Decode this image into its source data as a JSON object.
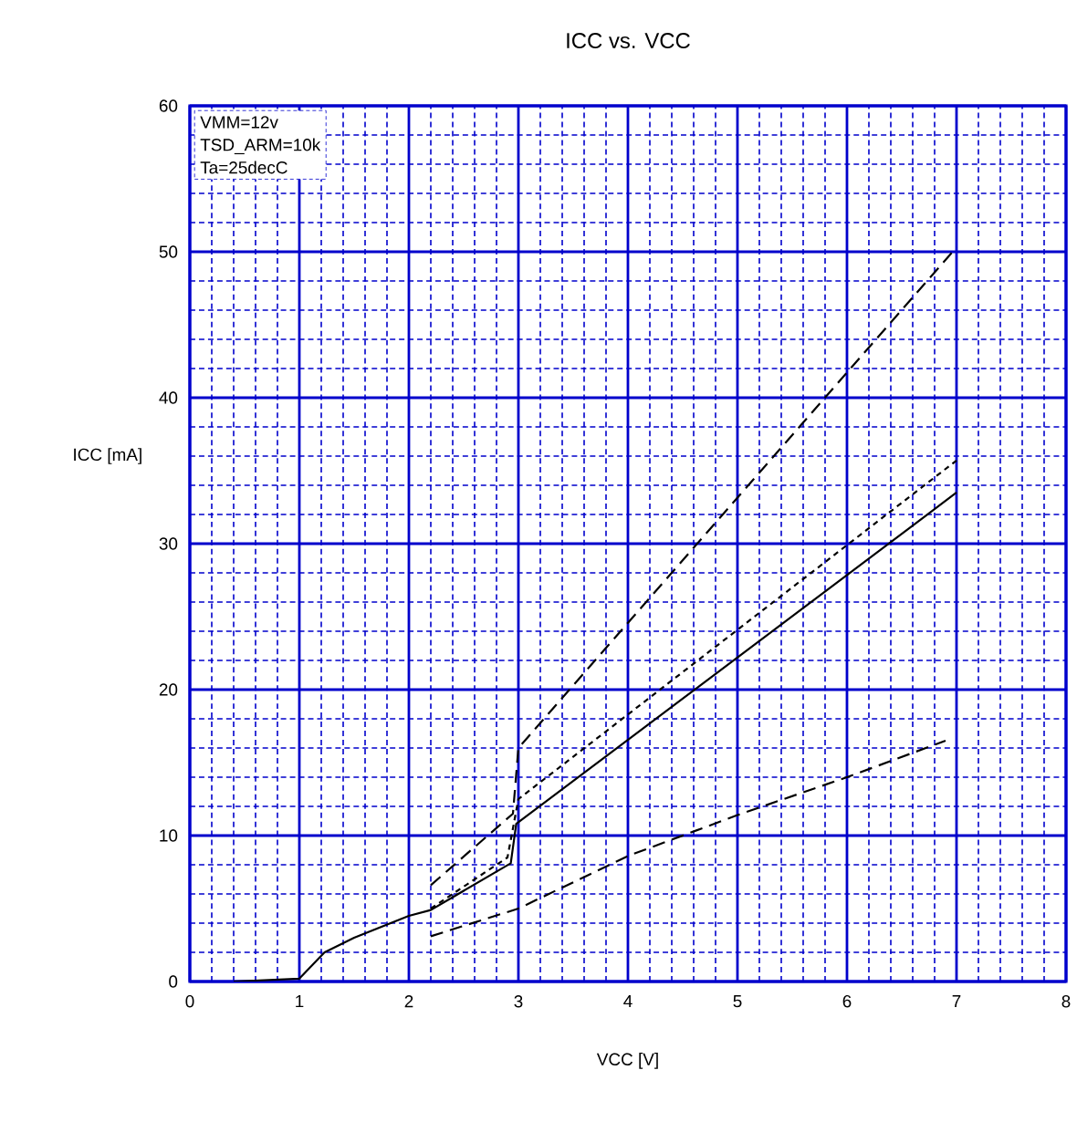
{
  "chart_data": {
    "type": "line",
    "title": "ICC vs. VCC",
    "xlabel": "VCC [V]",
    "ylabel": "ICC [mA]",
    "annotations": [
      "VMM=12v",
      "TSD_ARM=10k",
      "Ta=25decC"
    ],
    "series": [
      {
        "color": "#000000",
        "line_style": "solid",
        "x": [
          0.4,
          1.0,
          1.23,
          1.5,
          2.0,
          2.2,
          2.93,
          2.98,
          7.0
        ],
        "values": [
          0,
          0.2,
          2,
          3,
          4.5,
          4.9,
          8.1,
          10.8,
          33.5
        ]
      },
      {
        "color": "#000000",
        "line_style": "dashed",
        "x": [
          2.2,
          2.95,
          3.0,
          7.0
        ],
        "values": [
          6.6,
          11.5,
          16,
          50.3
        ]
      },
      {
        "color": "#000000",
        "line_style": "dotted",
        "x": [
          2.2,
          2.9,
          3.0,
          7.0
        ],
        "values": [
          5,
          8.5,
          12.5,
          35.7
        ]
      },
      {
        "color": "#000000",
        "line_style": "dashed",
        "x": [
          2.2,
          3.0,
          4.0,
          5.0,
          6.0,
          6.9
        ],
        "values": [
          3.1,
          5,
          8.6,
          11.4,
          14,
          16.5
        ]
      }
    ],
    "xlim": [
      0,
      8
    ],
    "ylim": [
      0,
      60
    ],
    "xticks": [
      0,
      {
        "value": 0.2,
        "label": null
      },
      {
        "value": 0.4,
        "label": null
      },
      {
        "value": 0.6,
        "label": null
      },
      {
        "value": 0.8,
        "label": null
      },
      1,
      {
        "value": 1.2,
        "label": null
      },
      {
        "value": 1.4,
        "label": null
      },
      {
        "value": 1.6,
        "label": null
      },
      {
        "value": 1.8,
        "label": null
      },
      2,
      {
        "value": 2.2,
        "label": null
      },
      {
        "value": 2.4,
        "label": null
      },
      {
        "value": 2.6,
        "label": null
      },
      {
        "value": 2.8,
        "label": null
      },
      3,
      {
        "value": 3.2,
        "label": null
      },
      {
        "value": 3.4,
        "label": null
      },
      {
        "value": 3.6,
        "label": null
      },
      {
        "value": 3.8,
        "label": null
      },
      4,
      {
        "value": 4.2,
        "label": null
      },
      {
        "value": 4.4,
        "label": null
      },
      {
        "value": 4.6,
        "label": null
      },
      {
        "value": 4.8,
        "label": null
      },
      5,
      {
        "value": 5.2,
        "label": null
      },
      {
        "value": 5.4,
        "label": null
      },
      {
        "value": 5.6,
        "label": null
      },
      {
        "value": 5.8,
        "label": null
      },
      6,
      {
        "value": 6.2,
        "label": null
      },
      {
        "value": 6.4,
        "label": null
      },
      {
        "value": 6.6,
        "label": null
      },
      {
        "value": 6.8,
        "label": null
      },
      7,
      {
        "value": 7.2,
        "label": null
      },
      {
        "value": 7.4,
        "label": null
      },
      {
        "value": 7.6,
        "label": null
      },
      {
        "value": 7.8,
        "label": null
      },
      8
    ],
    "yticks": [
      0,
      {
        "value": 2,
        "label": null
      },
      {
        "value": 4,
        "label": null
      },
      {
        "value": 6,
        "label": null
      },
      {
        "value": 8,
        "label": null
      },
      10,
      {
        "value": 12,
        "label": null
      },
      {
        "value": 14,
        "label": null
      },
      {
        "value": 16,
        "label": null
      },
      {
        "value": 18,
        "label": null
      },
      20,
      {
        "value": 22,
        "label": null
      },
      {
        "value": 24,
        "label": null
      },
      {
        "value": 26,
        "label": null
      },
      {
        "value": 28,
        "label": null
      },
      30,
      {
        "value": 32,
        "label": null
      },
      {
        "value": 34,
        "label": null
      },
      {
        "value": 36,
        "label": null
      },
      {
        "value": 38,
        "label": null
      },
      40,
      {
        "value": 42,
        "label": null
      },
      {
        "value": 44,
        "label": null
      },
      {
        "value": 46,
        "label": null
      },
      {
        "value": 48,
        "label": null
      },
      50,
      {
        "value": 52,
        "label": null
      },
      {
        "value": 54,
        "label": null
      },
      {
        "value": 56,
        "label": null
      },
      {
        "value": 58,
        "label": null
      },
      60
    ],
    "grid": true,
    "marker": "none"
  }
}
